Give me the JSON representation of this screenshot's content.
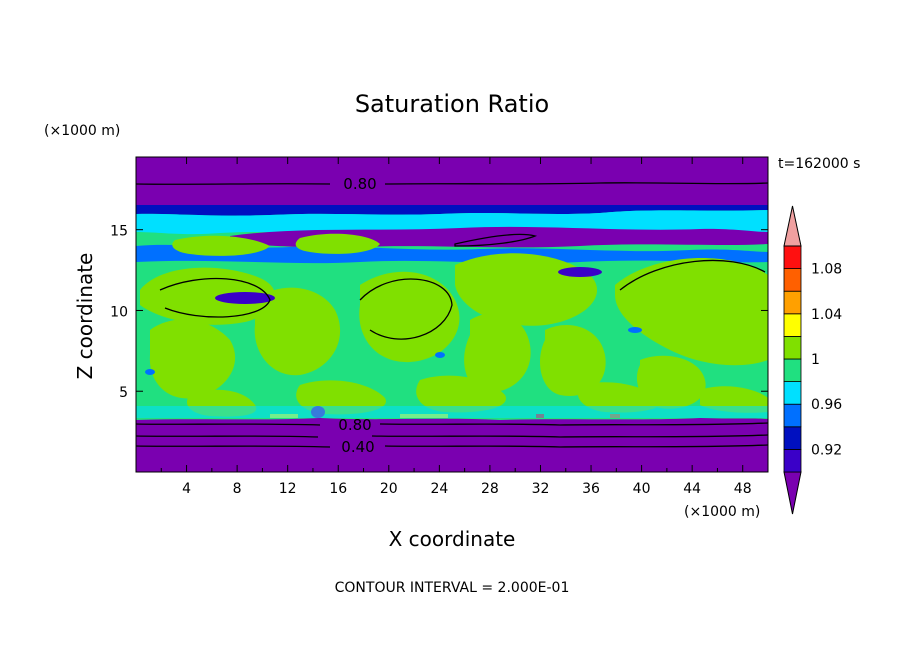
{
  "chart_data": {
    "type": "heatmap",
    "title": "Saturation Ratio",
    "xlabel": "X coordinate",
    "ylabel": "Z coordinate",
    "x_units": "(×1000 m)",
    "y_units": "(×1000 m)",
    "time_label": "t=162000 s",
    "footer": "CONTOUR INTERVAL = 2.000E-01",
    "xlim": [
      0,
      50
    ],
    "ylim": [
      0,
      19.5
    ],
    "x_ticks": [
      "4",
      "8",
      "12",
      "16",
      "20",
      "24",
      "28",
      "32",
      "36",
      "40",
      "44",
      "48"
    ],
    "y_ticks": [
      "5",
      "10",
      "15"
    ],
    "colorbar": {
      "levels": [
        0.9,
        0.92,
        0.94,
        0.96,
        0.98,
        1.0,
        1.02,
        1.04,
        1.06,
        1.08,
        1.1
      ],
      "tick_labels": [
        "0.92",
        "0.96",
        "1",
        "1.04",
        "1.08"
      ],
      "colors": [
        "#7a00b0",
        "#3a00c8",
        "#0010c0",
        "#0070ff",
        "#00e0ff",
        "#20e080",
        "#80e000",
        "#ffff00",
        "#ffa000",
        "#ff6000",
        "#ff1010",
        "#f0a0a0"
      ],
      "extend": "both"
    },
    "layers": [
      {
        "z_range": [
          0,
          3.3
        ],
        "value": "<0.90"
      },
      {
        "z_range": [
          3.3,
          16.5
        ],
        "value": "0.98-1.02"
      },
      {
        "z_range": [
          16.5,
          17.5
        ],
        "value": "0.92-0.96"
      },
      {
        "z_range": [
          17.5,
          19.5
        ],
        "value": "<0.90"
      }
    ],
    "contour_labels": [
      {
        "text": "0.80",
        "x": 17.3,
        "z": 18.1
      },
      {
        "text": "0.80",
        "x": 17.3,
        "z": 3.0
      },
      {
        "text": "0.40",
        "x": 17.3,
        "z": 1.6
      }
    ]
  }
}
